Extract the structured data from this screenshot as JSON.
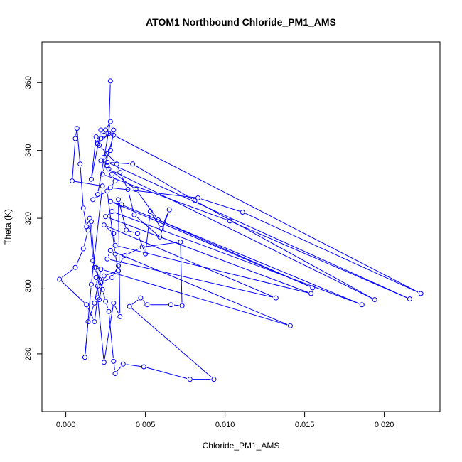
{
  "chart_data": {
    "type": "line",
    "title": "ATOM1 Northbound Chloride_PM1_AMS",
    "xlabel": "Chloride_PM1_AMS",
    "ylabel": "Theta (K)",
    "xlim": [
      -0.0015,
      0.0235
    ],
    "ylim": [
      263,
      372
    ],
    "x_ticks": [
      0.0,
      0.005,
      0.01,
      0.015,
      0.02
    ],
    "x_tick_labels": [
      "0.000",
      "0.005",
      "0.010",
      "0.015",
      "0.020"
    ],
    "y_ticks": [
      280,
      300,
      320,
      340,
      360
    ],
    "y_tick_labels": [
      "280",
      "300",
      "320",
      "340",
      "360"
    ],
    "grid": false,
    "series": [
      {
        "color": "#0000ff",
        "marker": "open-circle",
        "points": [
          [
            0.0028,
            360.5
          ],
          [
            0.0027,
            345.0
          ],
          [
            0.0024,
            344.5
          ],
          [
            0.0022,
            343.5
          ],
          [
            0.002,
            342.0
          ],
          [
            0.003,
            346.0
          ],
          [
            0.0028,
            340.0
          ],
          [
            0.0026,
            339.0
          ],
          [
            0.0024,
            338.0
          ],
          [
            0.0022,
            337.0
          ],
          [
            0.0026,
            335.5
          ],
          [
            0.0029,
            333.0
          ],
          [
            0.0031,
            331.0
          ],
          [
            0.0028,
            329.0
          ],
          [
            0.0083,
            326.0
          ],
          [
            0.0111,
            321.8
          ],
          [
            0.0223,
            297.8
          ],
          [
            0.003,
            344.5
          ],
          [
            0.0023,
            333.0
          ],
          [
            0.0103,
            319.2
          ],
          [
            0.0216,
            296.2
          ],
          [
            0.0026,
            336.5
          ],
          [
            0.0042,
            336.0
          ],
          [
            0.0081,
            325.2
          ],
          [
            0.0194,
            296.0
          ],
          [
            0.0027,
            334.5
          ],
          [
            0.0044,
            328.5
          ],
          [
            0.0058,
            319.5
          ],
          [
            0.0155,
            299.5
          ],
          [
            0.0028,
            325.0
          ],
          [
            0.0035,
            324.0
          ],
          [
            0.0186,
            294.5
          ],
          [
            0.0029,
            322.0
          ],
          [
            0.0025,
            320.5
          ],
          [
            0.0154,
            297.8
          ],
          [
            0.0031,
            312.0
          ],
          [
            0.003,
            315.5
          ],
          [
            0.0024,
            318.0
          ],
          [
            0.0132,
            296.5
          ],
          [
            0.0026,
            308.0
          ],
          [
            0.0028,
            310.5
          ],
          [
            0.0141,
            288.3
          ],
          [
            0.0022,
            305.0
          ],
          [
            0.002,
            300.0
          ],
          [
            0.0018,
            295.0
          ],
          [
            0.0014,
            289.5
          ],
          [
            0.0012,
            279.0
          ],
          [
            0.0016,
            300.5
          ],
          [
            0.0023,
            329.5
          ],
          [
            0.0004,
            331.0
          ],
          [
            0.0006,
            343.5
          ],
          [
            0.0007,
            346.5
          ],
          [
            0.0009,
            336.0
          ],
          [
            0.0011,
            323.0
          ],
          [
            0.0013,
            317.5
          ],
          [
            0.0015,
            320.0
          ],
          [
            0.0017,
            307.5
          ],
          [
            0.0019,
            305.5
          ],
          [
            0.0021,
            302.0
          ],
          [
            0.0023,
            299.0
          ],
          [
            0.0025,
            295.5
          ],
          [
            0.0027,
            292.5
          ],
          [
            0.003,
            277.8
          ],
          [
            0.0031,
            274.2
          ],
          [
            0.0036,
            277.0
          ],
          [
            0.0049,
            276.2
          ],
          [
            0.0078,
            272.5
          ],
          [
            0.0093,
            272.5
          ],
          [
            0.004,
            294.0
          ],
          [
            0.0047,
            296.5
          ],
          [
            0.0051,
            294.5
          ],
          [
            0.0066,
            294.5
          ],
          [
            0.0073,
            294.2
          ],
          [
            0.0072,
            313.0
          ],
          [
            0.0048,
            311.5
          ],
          [
            0.0037,
            309.0
          ],
          [
            0.0033,
            306.0
          ],
          [
            0.0029,
            302.5
          ],
          [
            0.0022,
            301.0
          ],
          [
            0.0018,
            305.5
          ],
          [
            0.0016,
            319.0
          ],
          [
            0.0014,
            316.5
          ],
          [
            0.0011,
            311.0
          ],
          [
            0.0006,
            305.5
          ],
          [
            -0.0004,
            302.0
          ],
          [
            0.0013,
            294.5
          ],
          [
            0.0018,
            289.5
          ],
          [
            0.002,
            296.5
          ],
          [
            0.0024,
            277.5
          ],
          [
            0.003,
            295.0
          ],
          [
            0.0034,
            291.0
          ],
          [
            0.0033,
            325.5
          ],
          [
            0.0038,
            316.5
          ],
          [
            0.0045,
            315.5
          ],
          [
            0.005,
            309.5
          ],
          [
            0.0053,
            322.0
          ],
          [
            0.006,
            317.0
          ],
          [
            0.0065,
            322.5
          ],
          [
            0.0059,
            314.5
          ],
          [
            0.0043,
            321.0
          ],
          [
            0.0039,
            328.5
          ],
          [
            0.0034,
            333.5
          ],
          [
            0.0032,
            336.0
          ],
          [
            0.0021,
            341.5
          ],
          [
            0.0019,
            344.0
          ],
          [
            0.0016,
            331.5
          ],
          [
            0.0022,
            346.0
          ],
          [
            0.0025,
            346.0
          ],
          [
            0.0028,
            348.5
          ],
          [
            0.002,
            327.0
          ],
          [
            0.0017,
            325.5
          ],
          [
            0.0026,
            328.0
          ],
          [
            0.0031,
            309.5
          ],
          [
            0.0033,
            304.5
          ],
          [
            0.0024,
            303.0
          ],
          [
            0.0021,
            296.0
          ],
          [
            0.0019,
            302.5
          ]
        ]
      }
    ]
  }
}
